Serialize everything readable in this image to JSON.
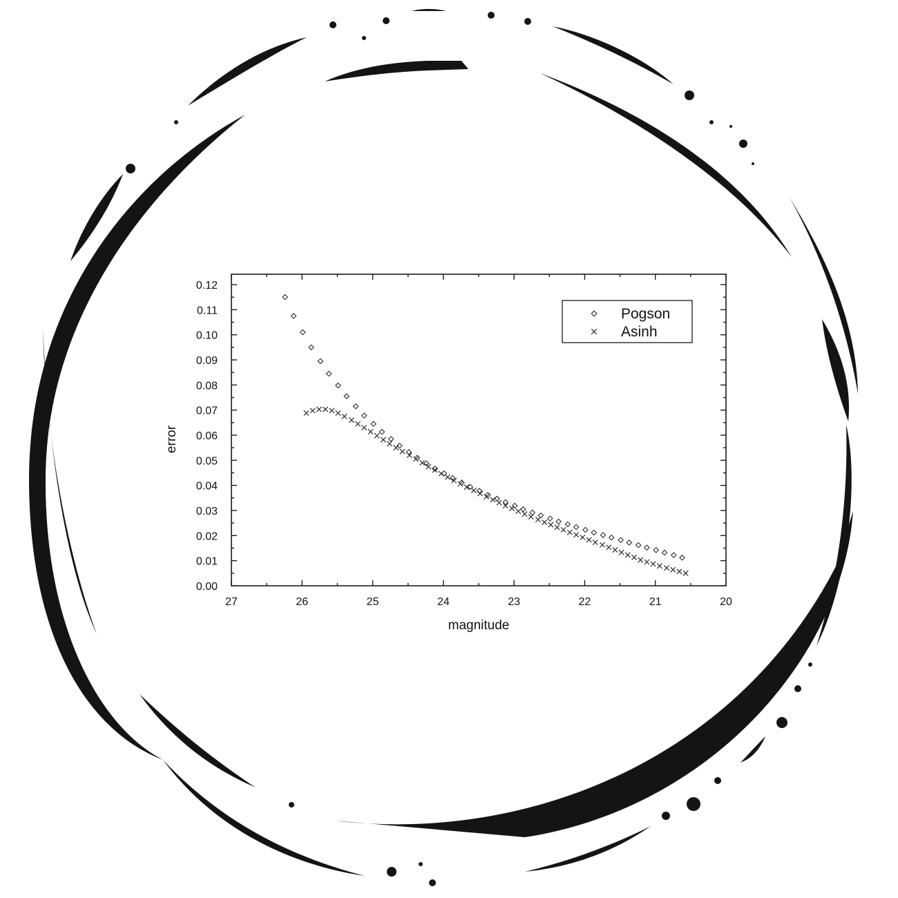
{
  "chart_data": {
    "type": "scatter",
    "xlabel": "magnitude",
    "ylabel": "error",
    "xlim": [
      27,
      20
    ],
    "ylim": [
      0.0,
      0.12
    ],
    "x_reversed": true,
    "x_ticks": [
      "27",
      "26",
      "25",
      "24",
      "23",
      "22",
      "21",
      "20"
    ],
    "y_ticks": [
      "0.00",
      "0.01",
      "0.02",
      "0.03",
      "0.04",
      "0.05",
      "0.06",
      "0.07",
      "0.08",
      "0.09",
      "0.10",
      "0.11",
      "0.12"
    ],
    "grid": false,
    "legend_position": "top-right",
    "series": [
      {
        "name": "Pogson",
        "marker": "diamond",
        "x": [
          26.24,
          26.12,
          25.99,
          25.87,
          25.74,
          25.62,
          25.49,
          25.37,
          25.24,
          25.12,
          24.99,
          24.87,
          24.74,
          24.62,
          24.49,
          24.37,
          24.24,
          24.12,
          23.99,
          23.87,
          23.74,
          23.62,
          23.49,
          23.37,
          23.24,
          23.12,
          22.99,
          22.87,
          22.74,
          22.62,
          22.49,
          22.37,
          22.24,
          22.12,
          21.99,
          21.87,
          21.74,
          21.62,
          21.49,
          21.37,
          21.24,
          21.12,
          20.99,
          20.87,
          20.74,
          20.62
        ],
        "y": [
          0.115,
          0.1075,
          0.101,
          0.095,
          0.0895,
          0.0845,
          0.0798,
          0.0755,
          0.0715,
          0.0678,
          0.0645,
          0.0613,
          0.0585,
          0.0558,
          0.0533,
          0.051,
          0.0488,
          0.0467,
          0.0448,
          0.0429,
          0.0411,
          0.0394,
          0.0378,
          0.0362,
          0.0347,
          0.0333,
          0.0319,
          0.0305,
          0.0292,
          0.028,
          0.0268,
          0.0256,
          0.0245,
          0.0234,
          0.0223,
          0.0212,
          0.0202,
          0.0192,
          0.0182,
          0.0172,
          0.0162,
          0.0152,
          0.0142,
          0.0132,
          0.0122,
          0.0112
        ]
      },
      {
        "name": "Asinh",
        "marker": "cross",
        "x": [
          25.94,
          25.85,
          25.76,
          25.67,
          25.58,
          25.49,
          25.4,
          25.3,
          25.21,
          25.12,
          25.03,
          24.94,
          24.85,
          24.76,
          24.67,
          24.58,
          24.48,
          24.39,
          24.3,
          24.21,
          24.12,
          24.03,
          23.94,
          23.85,
          23.76,
          23.67,
          23.57,
          23.48,
          23.39,
          23.3,
          23.21,
          23.12,
          23.03,
          22.94,
          22.85,
          22.76,
          22.66,
          22.57,
          22.48,
          22.39,
          22.3,
          22.21,
          22.12,
          22.03,
          21.94,
          21.85,
          21.75,
          21.66,
          21.57,
          21.48,
          21.39,
          21.3,
          21.21,
          21.12,
          21.03,
          20.94,
          20.84,
          20.75,
          20.66,
          20.57
        ],
        "y": [
          0.0688,
          0.0698,
          0.0703,
          0.0703,
          0.0698,
          0.0688,
          0.0675,
          0.066,
          0.0645,
          0.063,
          0.0614,
          0.0598,
          0.0582,
          0.0566,
          0.055,
          0.0535,
          0.052,
          0.0505,
          0.049,
          0.0475,
          0.0461,
          0.0447,
          0.0433,
          0.0419,
          0.0406,
          0.0393,
          0.038,
          0.0367,
          0.0355,
          0.0343,
          0.0331,
          0.0319,
          0.0308,
          0.0297,
          0.0286,
          0.0275,
          0.0264,
          0.0253,
          0.0243,
          0.0233,
          0.0223,
          0.0213,
          0.0203,
          0.0193,
          0.0183,
          0.0173,
          0.0163,
          0.0153,
          0.0143,
          0.0133,
          0.0123,
          0.0113,
          0.0103,
          0.0095,
          0.0087,
          0.0079,
          0.0071,
          0.0064,
          0.0057,
          0.005
        ]
      }
    ]
  }
}
